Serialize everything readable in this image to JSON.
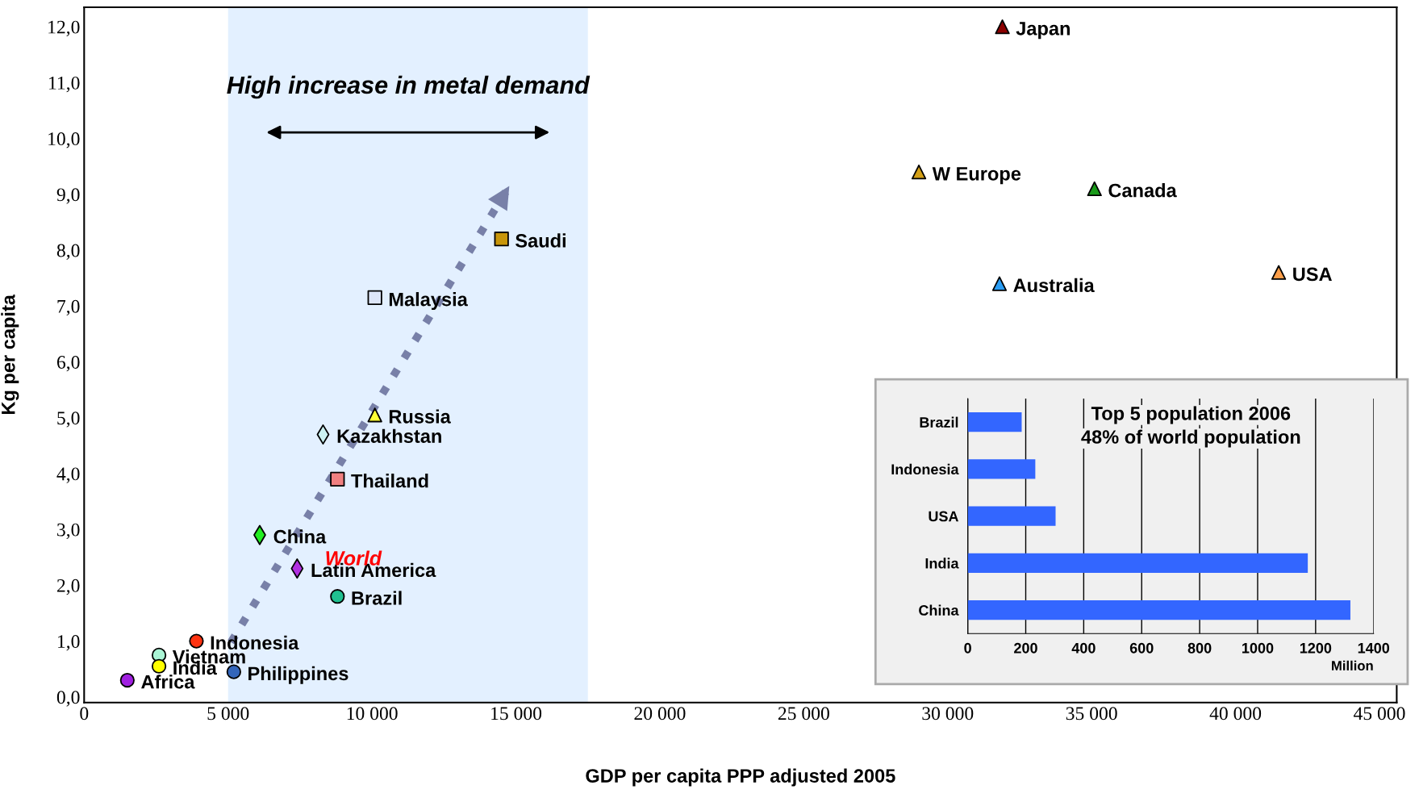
{
  "chart_data": [
    {
      "type": "scatter",
      "xlabel": "GDP per capita PPP adjusted 2005",
      "ylabel": "Kg per capita",
      "xlim": [
        0,
        45600
      ],
      "ylim": [
        -0.1,
        12.35
      ],
      "xticks": [
        0,
        {
          "value": 5000,
          "label": "5 000"
        },
        {
          "value": 10000,
          "label": "10 000"
        },
        {
          "value": 15000,
          "label": "15 000"
        },
        {
          "value": 20000,
          "label": "20 000"
        },
        {
          "value": 25000,
          "label": "25 000"
        },
        {
          "value": 30000,
          "label": "30 000"
        },
        {
          "value": 35000,
          "label": "35 000"
        },
        {
          "value": 40000,
          "label": "40 000"
        },
        {
          "value": 45000,
          "label": "45 000"
        }
      ],
      "yticks": [
        {
          "value": 0,
          "label": "0,0"
        },
        {
          "value": 1,
          "label": "1,0"
        },
        {
          "value": 2,
          "label": "2,0"
        },
        {
          "value": 3,
          "label": "3,0"
        },
        {
          "value": 4,
          "label": "4,0"
        },
        {
          "value": 5,
          "label": "5,0"
        },
        {
          "value": 6,
          "label": "6,0"
        },
        {
          "value": 7,
          "label": "7,0"
        },
        {
          "value": 8,
          "label": "8,0"
        },
        {
          "value": 9,
          "label": "9,0"
        },
        {
          "value": 10,
          "label": "10,0"
        },
        {
          "value": 11,
          "label": "11,0"
        },
        {
          "value": 12,
          "label": "12,0"
        }
      ],
      "grid": false,
      "bands": [
        {
          "axis": "x",
          "from": 5000,
          "to": 17500,
          "label": "High increase in metal demand",
          "color": "#e3f0ff"
        }
      ],
      "annotations": [
        "World"
      ],
      "series": [
        {
          "type": "line",
          "x": [
            5100,
            14770
          ],
          "values": [
            0.98,
            9.15
          ],
          "color": "#7880a8",
          "line_style": "dotted",
          "marker": "none"
        },
        {
          "name": "Japan",
          "x": [
            31900
          ],
          "values": [
            12.0
          ],
          "color": "#8b0000",
          "marker": "triangle"
        },
        {
          "name": "W Europe",
          "x": [
            29000
          ],
          "values": [
            9.4
          ],
          "color": "#d4a017",
          "marker": "triangle"
        },
        {
          "name": "Canada",
          "x": [
            35100
          ],
          "values": [
            9.1
          ],
          "color": "#1a9a1a",
          "marker": "triangle"
        },
        {
          "name": "Australia",
          "x": [
            31800
          ],
          "values": [
            7.4
          ],
          "color": "#2a9df4",
          "marker": "triangle"
        },
        {
          "name": "USA",
          "x": [
            41500
          ],
          "values": [
            7.6
          ],
          "color": "#ff9f4a",
          "marker": "triangle"
        },
        {
          "name": "Saudi",
          "x": [
            14500
          ],
          "values": [
            8.2
          ],
          "color": "#c8960a",
          "marker": "square"
        },
        {
          "name": "Malaysia",
          "x": [
            10100
          ],
          "values": [
            7.15
          ],
          "color": "#dde6f8",
          "marker": "square"
        },
        {
          "name": "Russia",
          "x": [
            10100
          ],
          "values": [
            5.05
          ],
          "color": "#ffff33",
          "marker": "triangle"
        },
        {
          "name": "Kazakhstan",
          "x": [
            8300
          ],
          "values": [
            4.7
          ],
          "color": "#ccf2f2",
          "marker": "diamond"
        },
        {
          "name": "Thailand",
          "x": [
            8800
          ],
          "values": [
            3.9
          ],
          "color": "#f08080",
          "marker": "square"
        },
        {
          "name": "China",
          "x": [
            6100
          ],
          "values": [
            2.9
          ],
          "color": "#22ee22",
          "marker": "diamond"
        },
        {
          "name": "Latin America",
          "x": [
            7400
          ],
          "values": [
            2.3
          ],
          "color": "#b030e0",
          "marker": "diamond"
        },
        {
          "name": "Brazil",
          "x": [
            8800
          ],
          "values": [
            1.8
          ],
          "color": "#20c090",
          "marker": "circle"
        },
        {
          "name": "Indonesia",
          "x": [
            3900
          ],
          "values": [
            1.0
          ],
          "color": "#ff3311",
          "marker": "circle"
        },
        {
          "name": "Vietnam",
          "x": [
            2600
          ],
          "values": [
            0.75
          ],
          "color": "#aaf5d5",
          "marker": "circle"
        },
        {
          "name": "India",
          "x": [
            2600
          ],
          "values": [
            0.55
          ],
          "color": "#ffff00",
          "marker": "circle"
        },
        {
          "name": "Africa",
          "x": [
            1500
          ],
          "values": [
            0.3
          ],
          "color": "#a020e0",
          "marker": "circle"
        },
        {
          "name": "Philippines",
          "x": [
            5200
          ],
          "values": [
            0.45
          ],
          "color": "#3366bb",
          "marker": "circle"
        }
      ]
    },
    {
      "type": "bar",
      "orientation": "horizontal",
      "title": "Top 5 population 2006",
      "subtitle": "48% of world population",
      "xlabel": "Million",
      "categories": [
        "Brazil",
        "Indonesia",
        "USA",
        "India",
        "China"
      ],
      "values": [
        186,
        233,
        303,
        1173,
        1320
      ],
      "color": "#3366ff",
      "xlim": [
        0,
        1400
      ],
      "xticks": [
        0,
        200,
        400,
        600,
        800,
        1000,
        1200,
        1400
      ],
      "grid": "x"
    }
  ]
}
